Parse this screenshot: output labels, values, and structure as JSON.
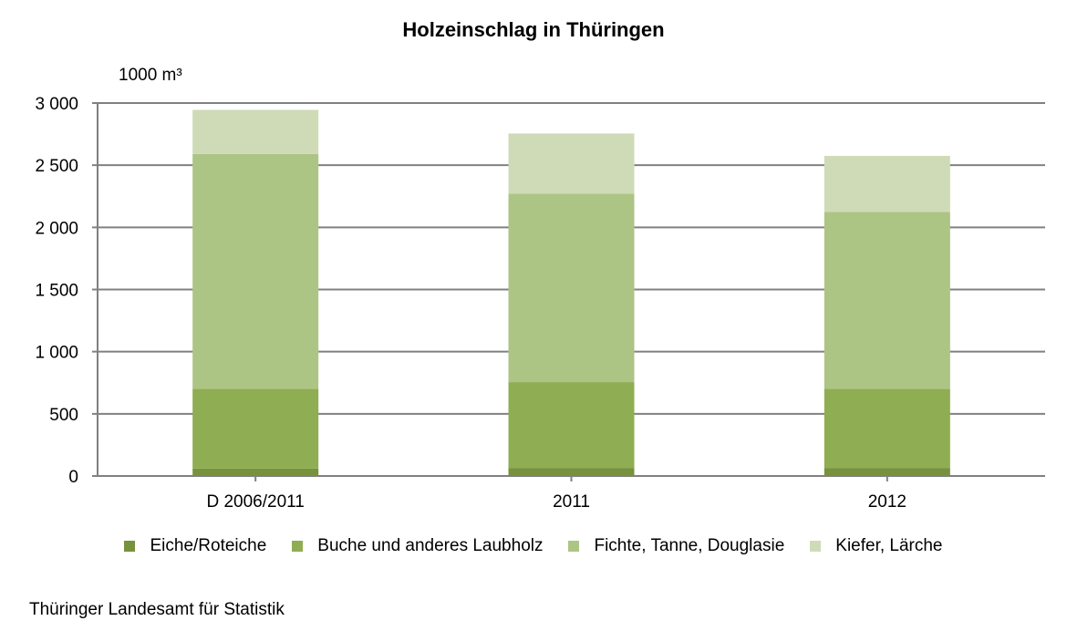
{
  "chart_data": {
    "type": "bar",
    "stacked": true,
    "title": "Holzeinschlag in Thüringen",
    "ylabel": "1000 m³",
    "xlabel": "",
    "ylim": [
      0,
      3000
    ],
    "yticks": [
      0,
      500,
      1000,
      1500,
      2000,
      2500,
      3000
    ],
    "ytick_labels": [
      "0",
      "500",
      "1 000",
      "1 500",
      "2 000",
      "2 500",
      "3 000"
    ],
    "grid": true,
    "legend": "bottom",
    "categories": [
      "D 2006/2011",
      "2011",
      "2012"
    ],
    "series": [
      {
        "name": "Eiche/Roteiche",
        "color": "#77923c",
        "values": [
          60,
          65,
          65
        ]
      },
      {
        "name": "Buche und anderes Laubholz",
        "color": "#8fad52",
        "values": [
          640,
          690,
          635
        ]
      },
      {
        "name": "Fichte, Tanne, Douglasie",
        "color": "#adc584",
        "values": [
          1890,
          1515,
          1425
        ]
      },
      {
        "name": "Kiefer, Lärche",
        "color": "#cfdbb7",
        "values": [
          355,
          485,
          450
        ]
      }
    ]
  },
  "source": "Thüringer Landesamt für Statistik"
}
